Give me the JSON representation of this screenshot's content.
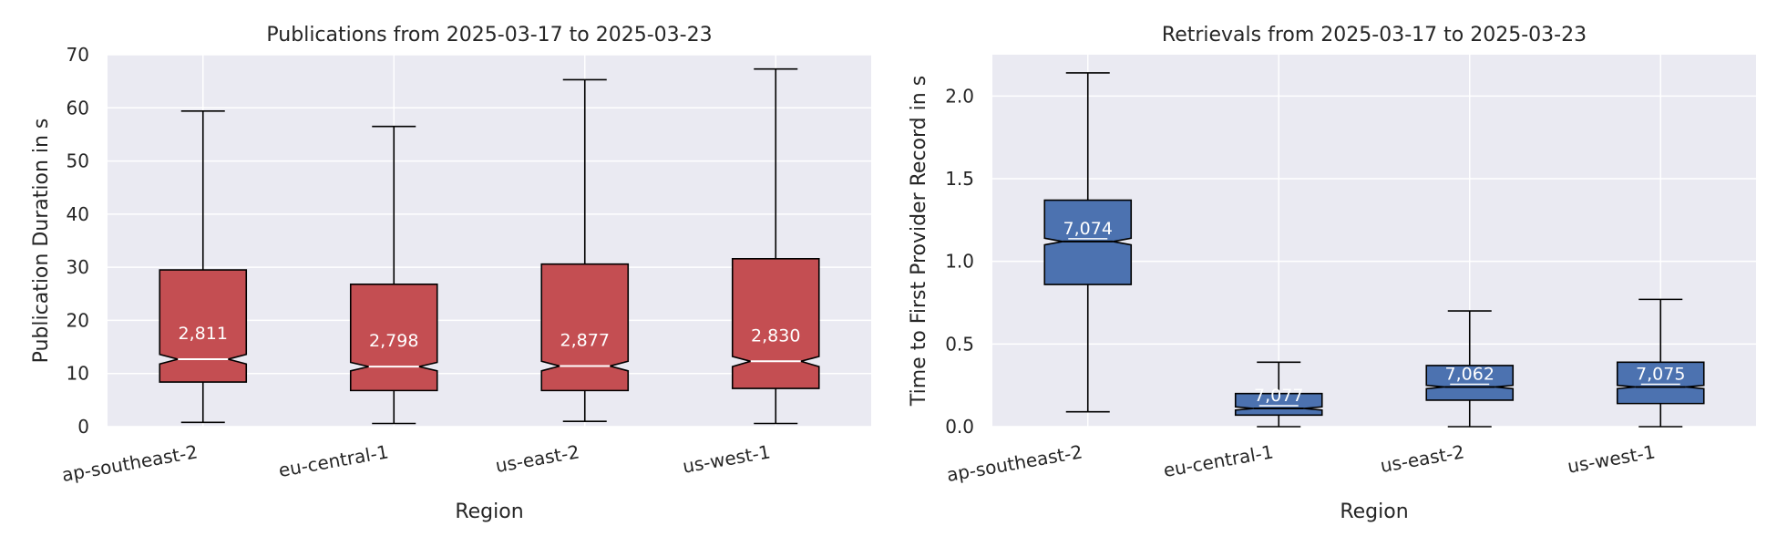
{
  "chart_data": [
    {
      "type": "boxplot",
      "title": "Publications from 2025-03-17 to 2025-03-23",
      "xlabel": "Region",
      "ylabel": "Publication Duration in s",
      "ylim": [
        0,
        70
      ],
      "yticks": [
        0,
        10,
        20,
        30,
        40,
        50,
        60,
        70
      ],
      "ytick_labels": [
        "0",
        "10",
        "20",
        "30",
        "40",
        "50",
        "60",
        "70"
      ],
      "color": "#C44E52",
      "categories": [
        "ap-southeast-2",
        "eu-central-1",
        "us-east-2",
        "us-west-1"
      ],
      "boxes": [
        {
          "whislo": 0.8,
          "q1": 8.4,
          "median": 12.7,
          "q3": 29.5,
          "whishi": 59.4,
          "notch_lo": 11.8,
          "notch_hi": 13.6,
          "count": "2,811"
        },
        {
          "whislo": 0.6,
          "q1": 6.8,
          "median": 11.3,
          "q3": 26.8,
          "whishi": 56.5,
          "notch_lo": 10.5,
          "notch_hi": 12.1,
          "count": "2,798"
        },
        {
          "whislo": 1.0,
          "q1": 6.8,
          "median": 11.4,
          "q3": 30.6,
          "whishi": 65.3,
          "notch_lo": 10.5,
          "notch_hi": 12.3,
          "count": "2,877"
        },
        {
          "whislo": 0.6,
          "q1": 7.2,
          "median": 12.3,
          "q3": 31.6,
          "whishi": 67.3,
          "notch_lo": 11.3,
          "notch_hi": 13.2,
          "count": "2,830"
        }
      ],
      "grid": true
    },
    {
      "type": "boxplot",
      "title": "Retrievals from 2025-03-17 to 2025-03-23",
      "xlabel": "Region",
      "ylabel": "Time to First Provider Record in s",
      "ylim": [
        0,
        2.25
      ],
      "yticks": [
        0,
        0.5,
        1.0,
        1.5,
        2.0
      ],
      "ytick_labels": [
        "0.0",
        "0.5",
        "1.0",
        "1.5",
        "2.0"
      ],
      "color": "#4C72B0",
      "categories": [
        "ap-southeast-2",
        "eu-central-1",
        "us-east-2",
        "us-west-1"
      ],
      "boxes": [
        {
          "whislo": 0.09,
          "q1": 0.86,
          "median": 1.12,
          "q3": 1.37,
          "whishi": 2.14,
          "notch_lo": 1.1,
          "notch_hi": 1.14,
          "count": "7,074"
        },
        {
          "whislo": 0.0,
          "q1": 0.07,
          "median": 0.11,
          "q3": 0.2,
          "whishi": 0.39,
          "notch_lo": 0.1,
          "notch_hi": 0.12,
          "count": "7,077"
        },
        {
          "whislo": 0.0,
          "q1": 0.16,
          "median": 0.24,
          "q3": 0.37,
          "whishi": 0.7,
          "notch_lo": 0.23,
          "notch_hi": 0.25,
          "count": "7,062"
        },
        {
          "whislo": 0.0,
          "q1": 0.14,
          "median": 0.24,
          "q3": 0.39,
          "whishi": 0.77,
          "notch_lo": 0.23,
          "notch_hi": 0.25,
          "count": "7,075"
        }
      ],
      "grid": true
    }
  ]
}
